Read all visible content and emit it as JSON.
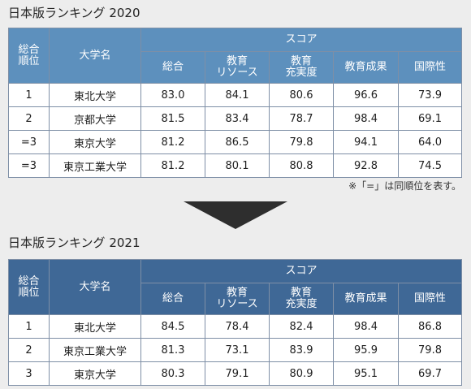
{
  "table2020": {
    "title": "日本版ランキング 2020",
    "headers": {
      "rank": [
        "総合",
        "順位"
      ],
      "university": "大学名",
      "score_group": "スコア",
      "columns": [
        [
          "総合"
        ],
        [
          "教育",
          "リソース"
        ],
        [
          "教育",
          "充実度"
        ],
        [
          "教育成果"
        ],
        [
          "国際性"
        ]
      ]
    },
    "rows": [
      {
        "rank": "1",
        "name": "東北大学",
        "scores": [
          "83.0",
          "84.1",
          "80.6",
          "96.6",
          "73.9"
        ]
      },
      {
        "rank": "2",
        "name": "京都大学",
        "scores": [
          "81.5",
          "83.4",
          "78.7",
          "98.4",
          "69.1"
        ]
      },
      {
        "rank": "=3",
        "name": "東京大学",
        "scores": [
          "81.2",
          "86.5",
          "79.8",
          "94.1",
          "64.0"
        ]
      },
      {
        "rank": "=3",
        "name": "東京工業大学",
        "scores": [
          "81.2",
          "80.1",
          "80.8",
          "92.8",
          "74.5"
        ]
      }
    ],
    "note": "※「=」は同順位を表す。"
  },
  "table2021": {
    "title": "日本版ランキング 2021",
    "headers": {
      "rank": [
        "総合",
        "順位"
      ],
      "university": "大学名",
      "score_group": "スコア",
      "columns": [
        [
          "総合"
        ],
        [
          "教育",
          "リソース"
        ],
        [
          "教育",
          "充実度"
        ],
        [
          "教育成果"
        ],
        [
          "国際性"
        ]
      ]
    },
    "rows": [
      {
        "rank": "1",
        "name": "東北大学",
        "scores": [
          "84.5",
          "78.4",
          "82.4",
          "98.4",
          "86.8"
        ]
      },
      {
        "rank": "2",
        "name": "東京工業大学",
        "scores": [
          "81.3",
          "73.1",
          "83.9",
          "95.9",
          "79.8"
        ]
      },
      {
        "rank": "3",
        "name": "東京大学",
        "scores": [
          "80.3",
          "79.1",
          "80.9",
          "95.1",
          "69.7"
        ]
      }
    ]
  },
  "colors": {
    "header_2020": "#5d90bd",
    "header_2021": "#3f6896",
    "border": "#7e8fa6",
    "arrow": "#2e2e2e",
    "background": "#ededed"
  },
  "icons": {
    "arrow": "down-triangle-arrow"
  }
}
